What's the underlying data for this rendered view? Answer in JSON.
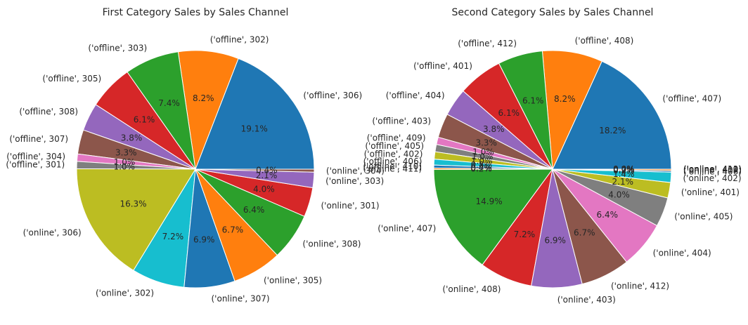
{
  "chart_data": [
    {
      "type": "pie",
      "title": "First Category Sales by Sales Channel",
      "startangle": 0,
      "counterclock": true,
      "labels": [
        "('offline', 306)",
        "('offline', 302)",
        "('offline', 303)",
        "('offline', 305)",
        "('offline', 308)",
        "('offline', 307)",
        "('offline', 304)",
        "('offline', 301)",
        "('online', 306)",
        "('online', 302)",
        "('online', 307)",
        "('online', 305)",
        "('online', 308)",
        "('online', 301)",
        "('online', 303)",
        "('online', 304)"
      ],
      "values": [
        19.1,
        8.2,
        7.4,
        6.1,
        3.8,
        3.3,
        1.0,
        1.0,
        16.3,
        7.2,
        6.9,
        6.7,
        6.4,
        4.0,
        2.1,
        0.4
      ],
      "pct_labels": [
        "19.1%",
        "8.2%",
        "7.4%",
        "6.1%",
        "3.8%",
        "3.3%",
        "1.0%",
        "1.0%",
        "16.3%",
        "7.2%",
        "6.9%",
        "6.7%",
        "6.4%",
        "4.0%",
        "2.1%",
        "0.4%"
      ],
      "colors": [
        "#1f77b4",
        "#ff7f0e",
        "#2ca02c",
        "#d62728",
        "#9467bd",
        "#8c564b",
        "#e377c2",
        "#7f7f7f",
        "#bcbd22",
        "#17becf",
        "#1f77b4",
        "#ff7f0e",
        "#2ca02c",
        "#d62728",
        "#9467bd",
        "#8c564b"
      ]
    },
    {
      "type": "pie",
      "title": "Second Category Sales by Sales Channel",
      "startangle": 0,
      "counterclock": true,
      "labels": [
        "('offline', 407)",
        "('offline', 408)",
        "('offline', 412)",
        "('offline', 401)",
        "('offline', 404)",
        "('offline', 403)",
        "('offline', 409)",
        "('offline', 405)",
        "('offline', 402)",
        "('offline', 406)",
        "('offline', 410)",
        "('offline', 411)",
        "('online', 407)",
        "('online', 408)",
        "('online', 403)",
        "('online', 412)",
        "('online', 404)",
        "('online', 405)",
        "('online', 401)",
        "('online', 402)",
        "('online', 406)",
        "('online', 409)",
        "('online', 410)",
        "('online', 411)"
      ],
      "values": [
        18.2,
        8.2,
        6.1,
        6.1,
        3.8,
        3.3,
        1.0,
        1.0,
        1.0,
        0.8,
        0.4,
        0.2,
        14.9,
        7.2,
        6.9,
        6.7,
        6.4,
        4.0,
        2.1,
        1.4,
        0.2,
        0.2,
        0.0,
        0.0
      ],
      "pct_labels": [
        "18.2%",
        "8.2%",
        "6.1%",
        "6.1%",
        "3.8%",
        "3.3%",
        "1.0%",
        "1.0%",
        "1.0%",
        "0.8%",
        "0.4%",
        "0.2%",
        "14.9%",
        "7.2%",
        "6.9%",
        "6.7%",
        "6.4%",
        "4.0%",
        "2.1%",
        "1.4%",
        "0.2%",
        "0.2%",
        "0.0%",
        "0.0%"
      ],
      "colors": [
        "#1f77b4",
        "#ff7f0e",
        "#2ca02c",
        "#d62728",
        "#9467bd",
        "#8c564b",
        "#e377c2",
        "#7f7f7f",
        "#bcbd22",
        "#17becf",
        "#1f77b4",
        "#ff7f0e",
        "#2ca02c",
        "#d62728",
        "#9467bd",
        "#8c564b",
        "#e377c2",
        "#7f7f7f",
        "#bcbd22",
        "#17becf",
        "#1f77b4",
        "#ff7f0e",
        "#2ca02c",
        "#d62728"
      ]
    }
  ]
}
